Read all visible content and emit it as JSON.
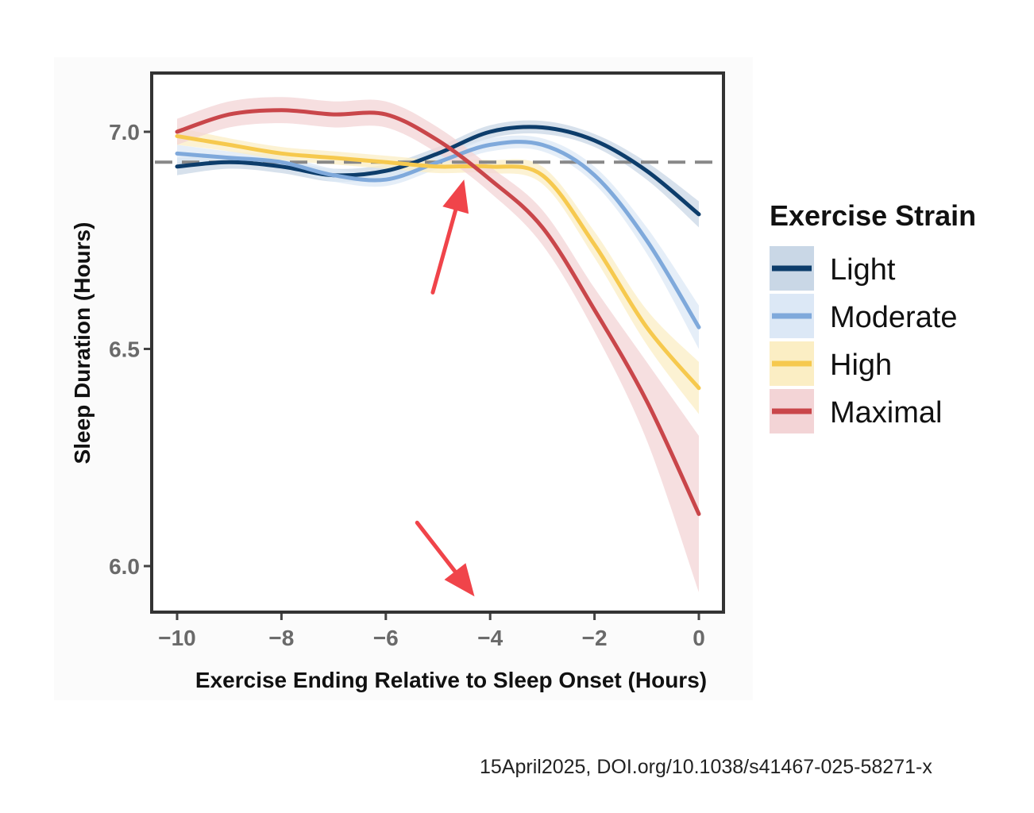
{
  "chart_data": {
    "type": "line",
    "xlabel": "Exercise Ending Relative to Sleep Onset (Hours)",
    "ylabel": "Sleep Duration (Hours)",
    "xlim": [
      -10.5,
      0.5
    ],
    "ylim": [
      5.9,
      7.14
    ],
    "x_ticks": [
      -10,
      -8,
      -6,
      -4,
      -2,
      0
    ],
    "x_tick_labels": [
      "−10",
      "−8",
      "−6",
      "−4",
      "−2",
      "0"
    ],
    "y_ticks": [
      6.0,
      6.5,
      7.0
    ],
    "y_tick_labels": [
      "6.0",
      "6.5",
      "7.0"
    ],
    "grid": false,
    "reference_line": {
      "y": 6.93,
      "style": "dashed"
    },
    "legend": {
      "title": "Exercise Strain",
      "position": "right"
    },
    "x": [
      -10,
      -9,
      -8,
      -7,
      -6,
      -5,
      -4,
      -3,
      -2,
      -1,
      0
    ],
    "series": [
      {
        "name": "Light",
        "color": "#0d3d6b",
        "band_color": "#c9d7e6",
        "values": [
          6.92,
          6.93,
          6.92,
          6.9,
          6.91,
          6.95,
          7.0,
          7.01,
          6.98,
          6.91,
          6.81
        ],
        "ci_halfwidth": [
          0.02,
          0.015,
          0.015,
          0.015,
          0.015,
          0.015,
          0.015,
          0.015,
          0.015,
          0.02,
          0.03
        ]
      },
      {
        "name": "Moderate",
        "color": "#7fa9db",
        "band_color": "#dce8f6",
        "values": [
          6.95,
          6.94,
          6.93,
          6.9,
          6.89,
          6.93,
          6.97,
          6.97,
          6.9,
          6.75,
          6.55
        ],
        "ci_halfwidth": [
          0.02,
          0.015,
          0.015,
          0.015,
          0.015,
          0.015,
          0.015,
          0.015,
          0.02,
          0.03,
          0.05
        ]
      },
      {
        "name": "High",
        "color": "#f6c94e",
        "band_color": "#fbeec4",
        "values": [
          6.99,
          6.97,
          6.95,
          6.94,
          6.93,
          6.92,
          6.92,
          6.9,
          6.74,
          6.55,
          6.41
        ],
        "ci_halfwidth": [
          0.02,
          0.015,
          0.015,
          0.015,
          0.015,
          0.015,
          0.015,
          0.02,
          0.03,
          0.04,
          0.06
        ]
      },
      {
        "name": "Maximal",
        "color": "#c9464a",
        "band_color": "#f3d4d6",
        "values": [
          7.0,
          7.04,
          7.05,
          7.04,
          7.04,
          6.98,
          6.89,
          6.78,
          6.59,
          6.38,
          6.12
        ],
        "ci_halfwidth": [
          0.03,
          0.03,
          0.03,
          0.03,
          0.03,
          0.03,
          0.03,
          0.04,
          0.05,
          0.09,
          0.18
        ]
      }
    ],
    "annotations": [
      {
        "type": "arrow",
        "color": "#f0444a",
        "from": [
          -5.1,
          6.63
        ],
        "to": [
          -4.5,
          6.89
        ]
      },
      {
        "type": "arrow",
        "color": "#f0444a",
        "from": [
          -5.4,
          6.1
        ],
        "to": [
          -4.3,
          5.93
        ]
      }
    ]
  },
  "citation": "15April2025, DOI.org/10.1038/s41467-025-58271-x"
}
